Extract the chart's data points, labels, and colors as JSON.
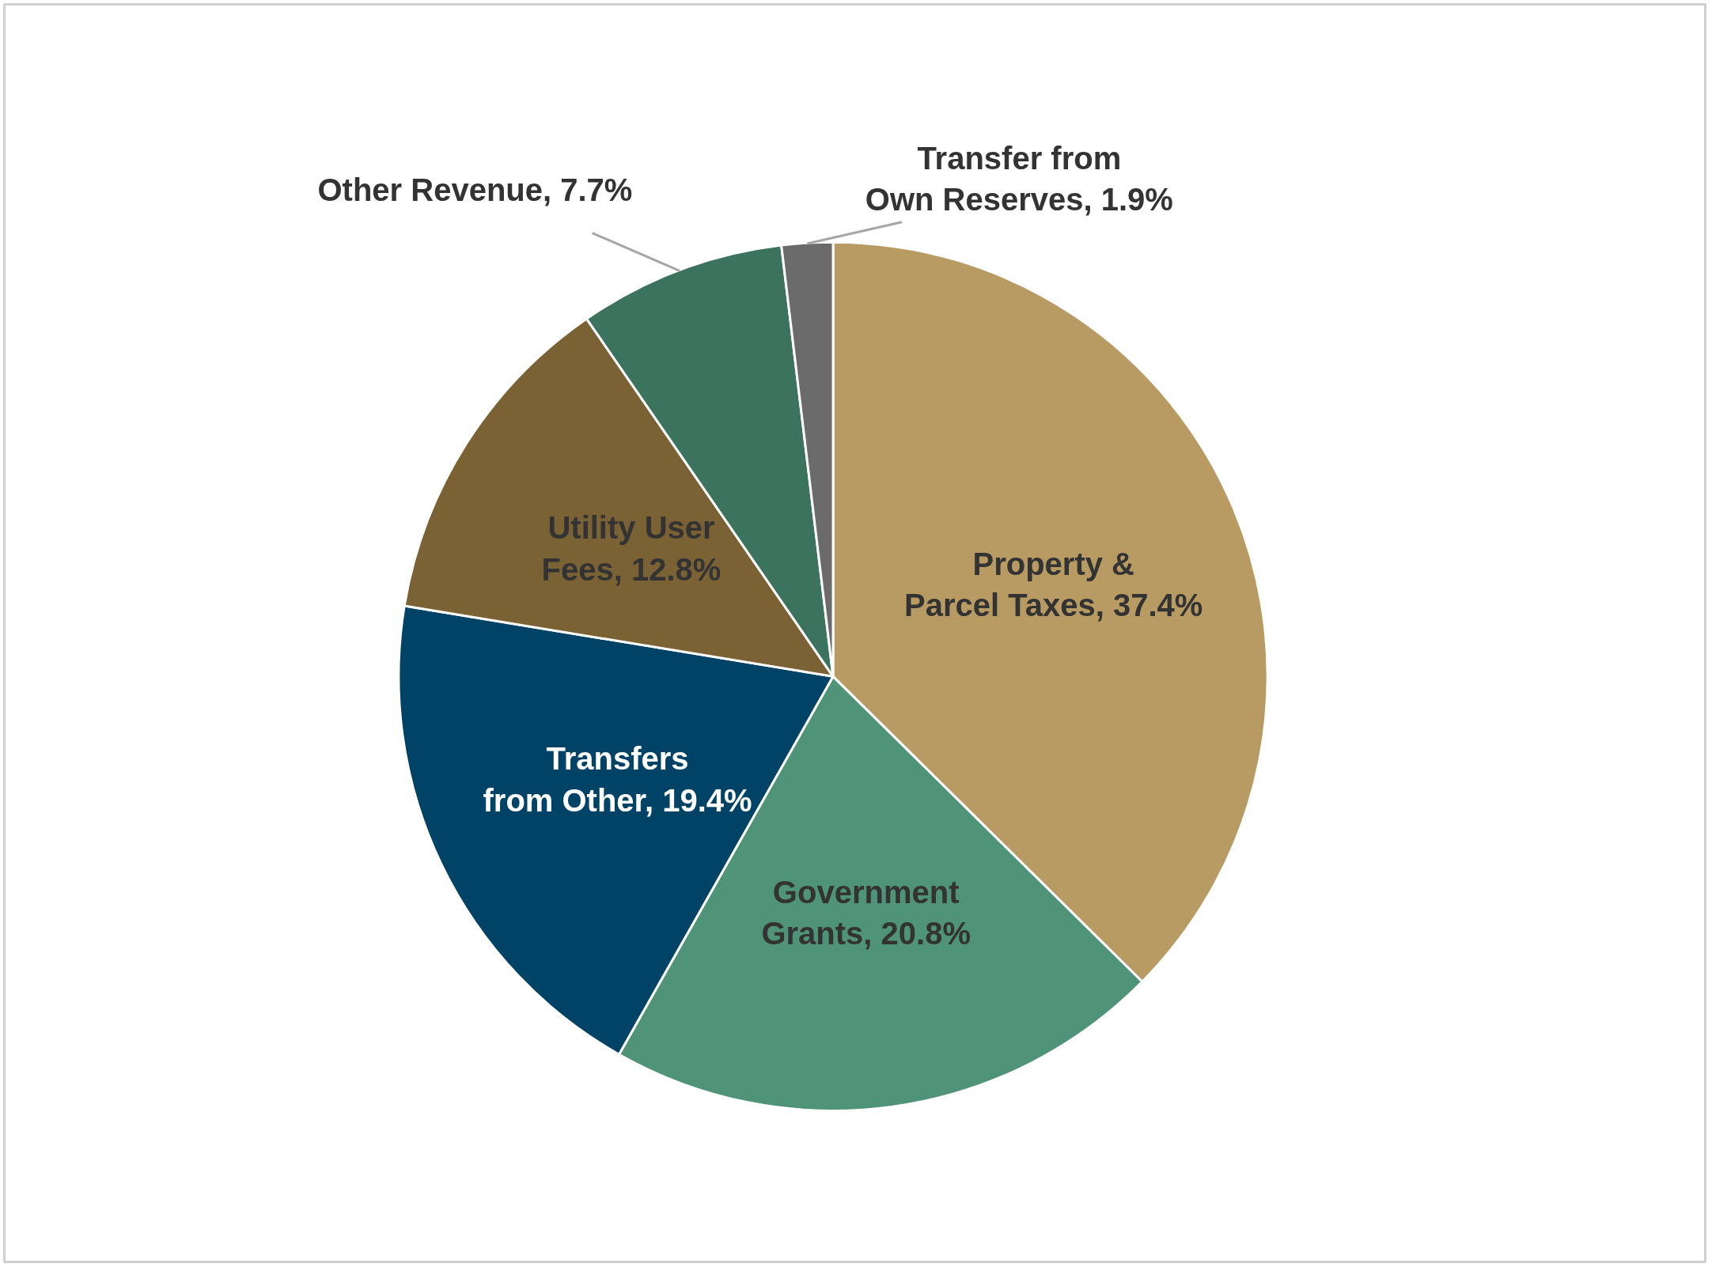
{
  "chart_data": {
    "type": "pie",
    "categories": [
      "Property & Parcel Taxes",
      "Government Grants",
      "Transfers from Other",
      "Utility User Fees",
      "Other Revenue",
      "Transfer from Own Reserves"
    ],
    "values": [
      37.4,
      20.8,
      19.4,
      12.8,
      7.7,
      1.9
    ],
    "value_labels": [
      "37.4%",
      "20.8%",
      "19.4%",
      "12.8%",
      "7.7%",
      "1.9%"
    ],
    "colors": [
      "#b89a63",
      "#4f9479",
      "#004366",
      "#7b6234",
      "#3b735e",
      "#6b6b6b"
    ],
    "legend": false
  }
}
